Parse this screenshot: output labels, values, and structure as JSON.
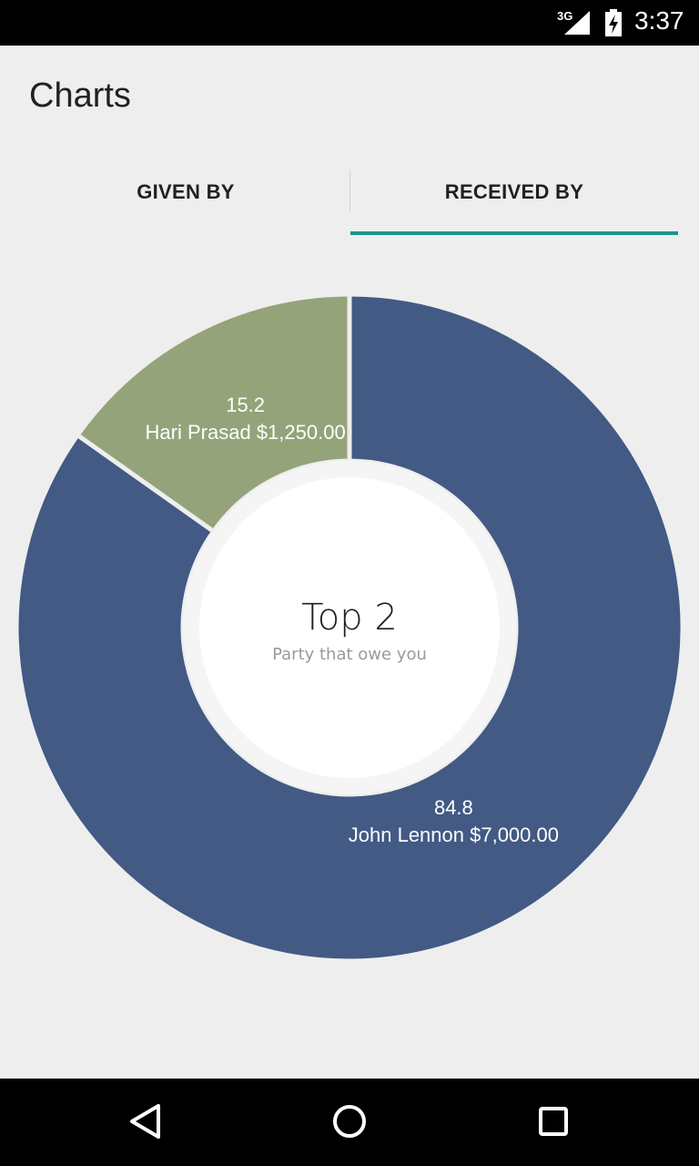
{
  "status_bar": {
    "network": "3G",
    "time": "3:37"
  },
  "app": {
    "title": "Charts"
  },
  "tabs": [
    {
      "label": "GIVEN BY",
      "selected": false
    },
    {
      "label": "RECEIVED BY",
      "selected": true
    }
  ],
  "colors": {
    "accent": "#16978a",
    "series_primary": "#425a84",
    "series_secondary": "#94a379"
  },
  "chart_data": {
    "type": "pie",
    "style": "donut",
    "center_title": "Top 2",
    "center_subtitle": "Party that owe you",
    "slices": [
      {
        "name": "John Lennon",
        "amount_label": "$7,000.00",
        "percent_label": "84.8",
        "value": 84.8,
        "color": "#425a84"
      },
      {
        "name": "Hari Prasad",
        "amount_label": "$1,250.00",
        "percent_label": "15.2",
        "value": 15.2,
        "color": "#94a379"
      }
    ]
  },
  "nav_bar": {
    "icons": [
      "back-icon",
      "home-icon",
      "recents-icon"
    ]
  }
}
